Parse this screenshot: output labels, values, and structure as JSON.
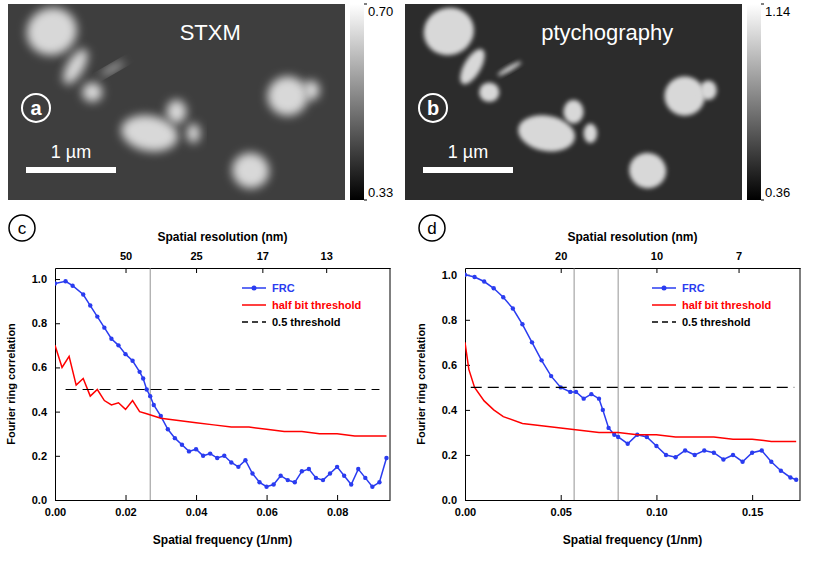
{
  "chart_data": [
    {
      "type": "image",
      "title": "STXM",
      "letter": "a",
      "scale_bar": "1 µm",
      "colorbar": {
        "range": [
          0.33,
          0.7
        ],
        "ticks": [
          0.33,
          {
            "value": 0.7,
            "label": "0.70"
          }
        ]
      }
    },
    {
      "type": "image",
      "title": "ptychography",
      "letter": "b",
      "scale_bar": "1 µm",
      "colorbar": {
        "range": [
          0.36,
          1.14
        ],
        "ticks": [
          0.36,
          1.14
        ]
      }
    },
    {
      "type": "line",
      "letter": "c",
      "xlabel": "Spatial frequency (1/nm)",
      "ylabel": "Fourier ring correlation",
      "x2label": "Spatial resolution (nm)",
      "xlim": [
        0,
        0.095
      ],
      "xticks": [
        {
          "value": 0,
          "label": "0.00"
        },
        {
          "value": 0.02,
          "label": "0.02"
        },
        {
          "value": 0.04,
          "label": "0.04"
        },
        {
          "value": 0.06,
          "label": "0.06"
        },
        {
          "value": 0.08,
          "label": "0.08"
        }
      ],
      "x2ticks": [
        {
          "value": 0.02,
          "label": "50"
        },
        {
          "value": 0.04,
          "label": "25"
        },
        {
          "value": 0.0588,
          "label": "17"
        },
        {
          "value": 0.0769,
          "label": "13"
        }
      ],
      "ylim": [
        0,
        1.05
      ],
      "yticks": [
        {
          "value": 0,
          "label": "0.0"
        },
        {
          "value": 0.2,
          "label": "0.2"
        },
        {
          "value": 0.4,
          "label": "0.4"
        },
        {
          "value": 0.6,
          "label": "0.6"
        },
        {
          "value": 0.8,
          "label": "0.8"
        },
        {
          "value": 1,
          "label": "1.0"
        }
      ],
      "vlines": [
        0.027
      ],
      "legend": "upper right",
      "series": [
        {
          "name": "FRC",
          "color": "#2a3cf0",
          "marker": "circle",
          "line_style": "solid",
          "x": [
            0,
            0.003,
            0.005,
            0.008,
            0.01,
            0.012,
            0.014,
            0.016,
            0.018,
            0.02,
            0.022,
            0.024,
            0.025,
            0.026,
            0.027,
            0.028,
            0.03,
            0.032,
            0.034,
            0.036,
            0.038,
            0.04,
            0.042,
            0.044,
            0.046,
            0.048,
            0.05,
            0.052,
            0.054,
            0.056,
            0.058,
            0.06,
            0.062,
            0.064,
            0.066,
            0.068,
            0.07,
            0.072,
            0.074,
            0.076,
            0.078,
            0.08,
            0.082,
            0.084,
            0.086,
            0.088,
            0.09,
            0.092,
            0.094
          ],
          "values": [
            0.98,
            0.99,
            0.97,
            0.93,
            0.88,
            0.83,
            0.78,
            0.73,
            0.7,
            0.66,
            0.63,
            0.58,
            0.55,
            0.5,
            0.47,
            0.43,
            0.38,
            0.32,
            0.28,
            0.25,
            0.22,
            0.23,
            0.2,
            0.21,
            0.19,
            0.2,
            0.17,
            0.15,
            0.18,
            0.12,
            0.08,
            0.06,
            0.07,
            0.11,
            0.09,
            0.08,
            0.13,
            0.14,
            0.1,
            0.09,
            0.12,
            0.15,
            0.11,
            0.07,
            0.14,
            0.1,
            0.06,
            0.08,
            0.19
          ]
        },
        {
          "name": "half bit threshold",
          "color": "#ff0000",
          "line_style": "solid",
          "x": [
            0,
            0.002,
            0.004,
            0.006,
            0.008,
            0.01,
            0.012,
            0.014,
            0.016,
            0.018,
            0.02,
            0.022,
            0.024,
            0.026,
            0.028,
            0.03,
            0.035,
            0.04,
            0.045,
            0.05,
            0.055,
            0.06,
            0.065,
            0.07,
            0.075,
            0.08,
            0.085,
            0.09,
            0.094
          ],
          "values": [
            0.7,
            0.6,
            0.65,
            0.52,
            0.55,
            0.47,
            0.5,
            0.45,
            0.43,
            0.44,
            0.41,
            0.45,
            0.4,
            0.39,
            0.38,
            0.37,
            0.36,
            0.35,
            0.34,
            0.33,
            0.33,
            0.32,
            0.31,
            0.31,
            0.3,
            0.3,
            0.29,
            0.29,
            0.29
          ]
        },
        {
          "name": "0.5 threshold",
          "color": "#000000",
          "line_style": "dashed",
          "x": [
            0.003,
            0.092
          ],
          "values": [
            0.5,
            0.5
          ]
        }
      ]
    },
    {
      "type": "line",
      "letter": "d",
      "xlabel": "Spatial frequency (1/nm)",
      "ylabel": "Fourier ring correlation",
      "x2label": "Spatial resolution (nm)",
      "xlim": [
        0,
        0.175
      ],
      "xticks": [
        {
          "value": 0,
          "label": "0.00"
        },
        {
          "value": 0.05,
          "label": "0.05"
        },
        {
          "value": 0.1,
          "label": "0.10"
        },
        {
          "value": 0.15,
          "label": "0.15"
        }
      ],
      "x2ticks": [
        {
          "value": 0.05,
          "label": "20"
        },
        {
          "value": 0.1,
          "label": "10"
        },
        {
          "value": 0.1429,
          "label": "7"
        }
      ],
      "ylim": [
        0,
        1.03
      ],
      "yticks": [
        {
          "value": 0,
          "label": "0.0"
        },
        {
          "value": 0.2,
          "label": "0.2"
        },
        {
          "value": 0.4,
          "label": "0.4"
        },
        {
          "value": 0.6,
          "label": "0.6"
        },
        {
          "value": 0.8,
          "label": "0.8"
        },
        {
          "value": 1,
          "label": "1.0"
        }
      ],
      "vlines": [
        0.057,
        0.08
      ],
      "legend": "upper right",
      "series": [
        {
          "name": "FRC",
          "color": "#2a3cf0",
          "marker": "circle",
          "line_style": "solid",
          "x": [
            0,
            0.005,
            0.01,
            0.015,
            0.02,
            0.025,
            0.03,
            0.035,
            0.04,
            0.045,
            0.05,
            0.055,
            0.058,
            0.062,
            0.066,
            0.07,
            0.072,
            0.075,
            0.078,
            0.08,
            0.085,
            0.09,
            0.095,
            0.1,
            0.105,
            0.11,
            0.115,
            0.12,
            0.125,
            0.13,
            0.135,
            0.14,
            0.145,
            0.15,
            0.155,
            0.16,
            0.165,
            0.17,
            0.173
          ],
          "values": [
            1.0,
            0.99,
            0.97,
            0.94,
            0.9,
            0.85,
            0.78,
            0.7,
            0.62,
            0.55,
            0.5,
            0.48,
            0.48,
            0.45,
            0.47,
            0.45,
            0.4,
            0.32,
            0.29,
            0.28,
            0.25,
            0.29,
            0.28,
            0.24,
            0.2,
            0.19,
            0.22,
            0.2,
            0.22,
            0.21,
            0.18,
            0.2,
            0.17,
            0.21,
            0.22,
            0.17,
            0.13,
            0.1,
            0.09
          ]
        },
        {
          "name": "half bit threshold",
          "color": "#ff0000",
          "line_style": "solid",
          "x": [
            0,
            0.002,
            0.005,
            0.01,
            0.015,
            0.02,
            0.03,
            0.04,
            0.05,
            0.06,
            0.07,
            0.08,
            0.09,
            0.1,
            0.11,
            0.12,
            0.13,
            0.14,
            0.15,
            0.16,
            0.173
          ],
          "values": [
            0.7,
            0.58,
            0.5,
            0.44,
            0.4,
            0.37,
            0.34,
            0.33,
            0.32,
            0.31,
            0.3,
            0.3,
            0.29,
            0.29,
            0.28,
            0.28,
            0.28,
            0.27,
            0.27,
            0.26,
            0.26
          ]
        },
        {
          "name": "0.5 threshold",
          "color": "#000000",
          "line_style": "dashed",
          "x": [
            0.003,
            0.172
          ],
          "values": [
            0.5,
            0.5
          ]
        }
      ]
    }
  ]
}
